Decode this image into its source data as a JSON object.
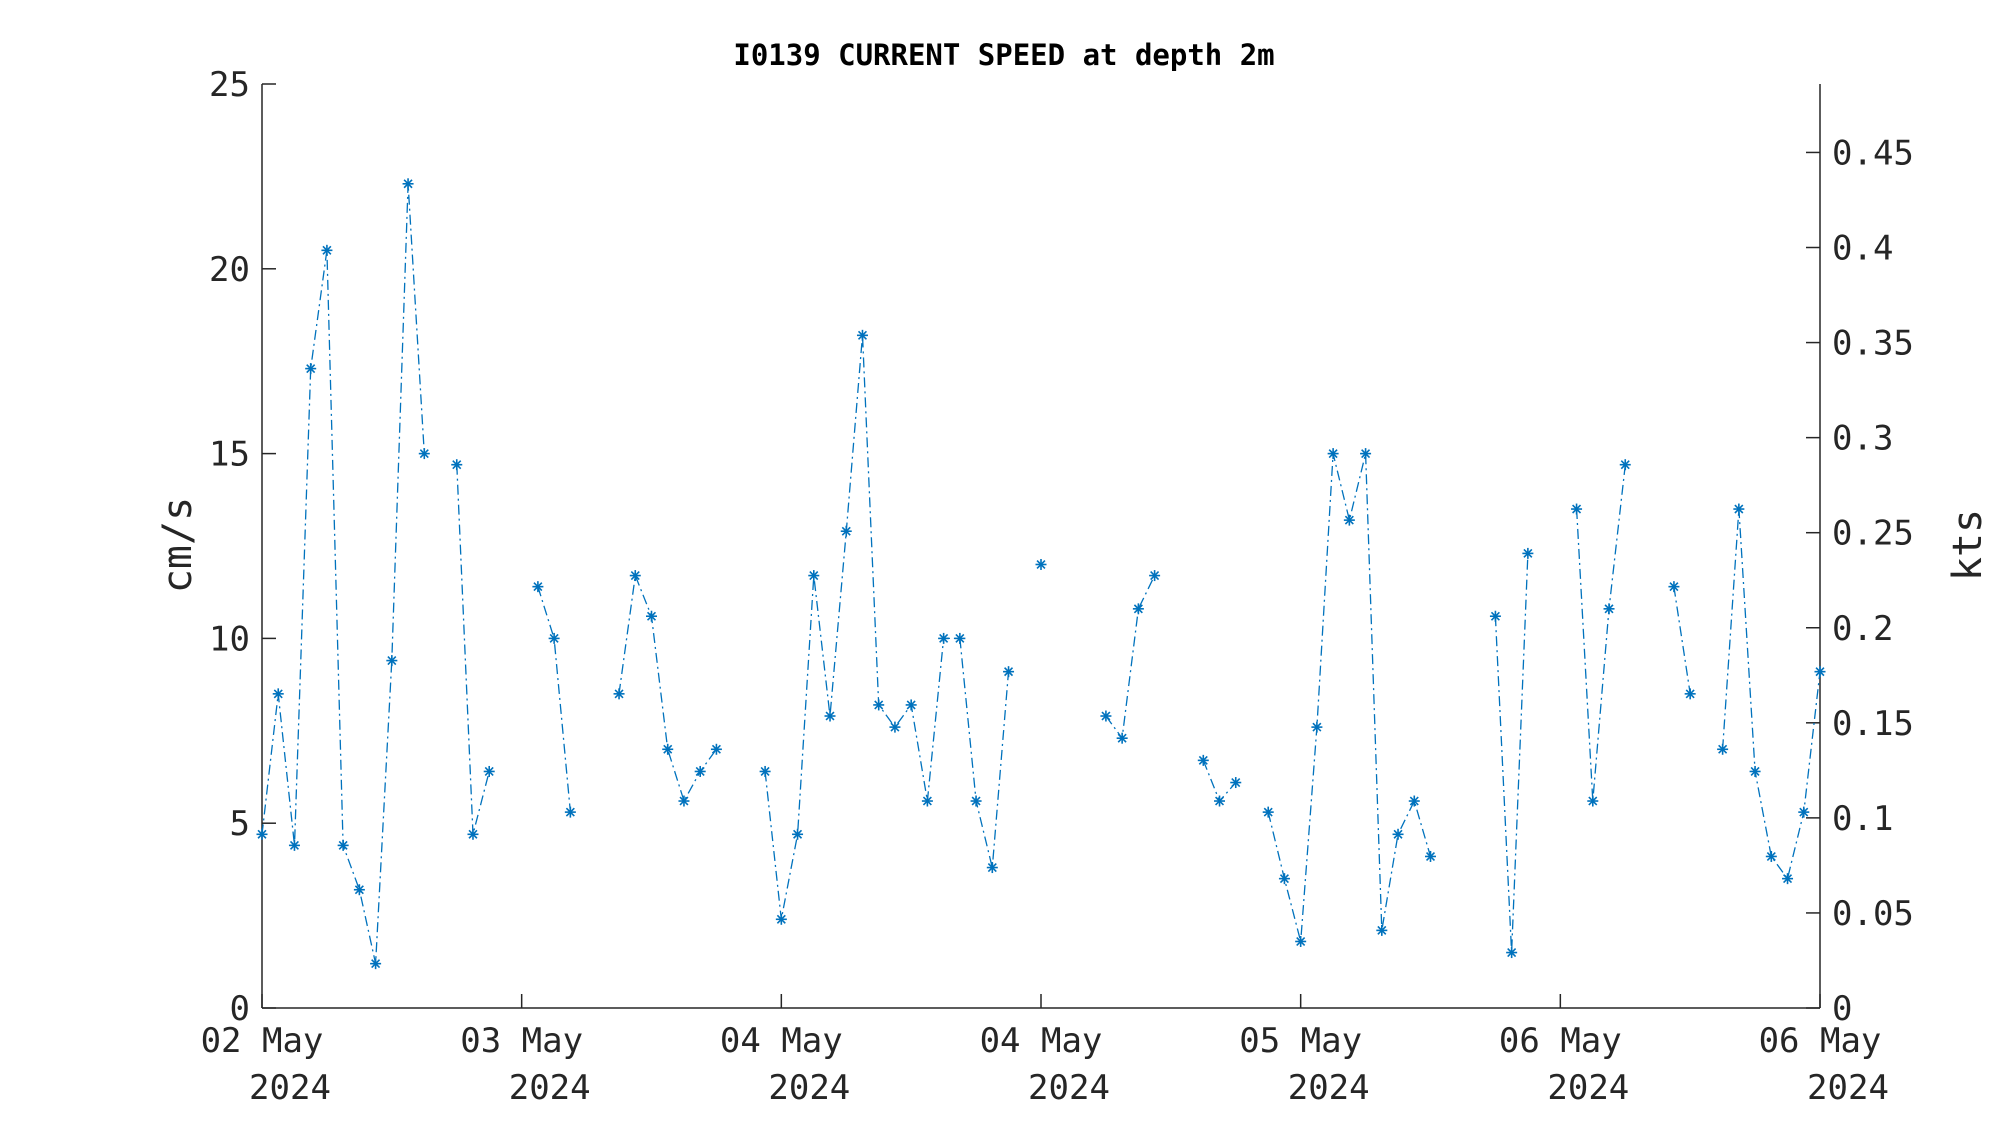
{
  "chart_data": {
    "type": "line",
    "title": "I0139 CURRENT SPEED at depth 2m",
    "ylabel": "cm/s",
    "ylabel_right": "kts",
    "ylim": [
      0,
      25
    ],
    "ylim_right": [
      0,
      0.486
    ],
    "yticks": [
      "0",
      "5",
      "10",
      "15",
      "20",
      "25"
    ],
    "yticks_right": [
      "0",
      "0.05",
      "0.1",
      "0.15",
      "0.2",
      "0.25",
      "0.3",
      "0.35",
      "0.4",
      "0.45"
    ],
    "xlim_days": [
      0,
      6
    ],
    "xtick_labels": [
      [
        "02 May",
        "2024"
      ],
      [
        "03 May",
        "2024"
      ],
      [
        "04 May",
        "2024"
      ],
      [
        "04 May",
        "2024"
      ],
      [
        "05 May",
        "2024"
      ],
      [
        "06 May",
        "2024"
      ],
      [
        "06 May",
        "2024"
      ]
    ],
    "grid": false,
    "marker": "asterisk",
    "line_style": "dash-dot",
    "color": "#0072BD",
    "step_days": 0.0625,
    "series": [
      {
        "values": [
          4.7,
          8.5,
          4.4,
          17.3,
          20.5,
          4.4,
          3.2,
          1.2,
          9.4,
          22.3,
          15.0,
          null,
          14.7,
          4.7,
          6.4,
          null,
          null,
          11.4,
          10.0,
          5.3,
          null,
          null,
          8.5,
          11.7,
          10.6,
          7.0,
          5.6,
          6.4,
          7.0,
          null,
          null,
          6.4,
          2.4,
          4.7,
          11.7,
          7.9,
          12.9,
          18.2,
          8.2,
          7.6,
          8.2,
          5.6,
          10.0,
          10.0,
          5.6,
          3.8,
          9.1,
          null,
          12.0,
          null,
          null,
          null,
          7.9,
          7.3,
          10.8,
          11.7,
          null,
          null,
          6.7,
          5.6,
          6.1,
          null,
          5.3,
          3.5,
          1.8,
          7.6,
          15.0,
          13.2,
          15.0,
          2.1,
          4.7,
          5.6,
          4.1,
          null,
          null,
          null,
          10.6,
          1.5,
          12.3,
          null,
          null,
          13.5,
          5.6,
          10.8,
          14.7,
          null,
          null,
          11.4,
          8.5,
          null,
          7.0,
          13.5,
          6.4,
          4.1,
          3.5,
          5.3,
          9.1
        ]
      }
    ]
  }
}
